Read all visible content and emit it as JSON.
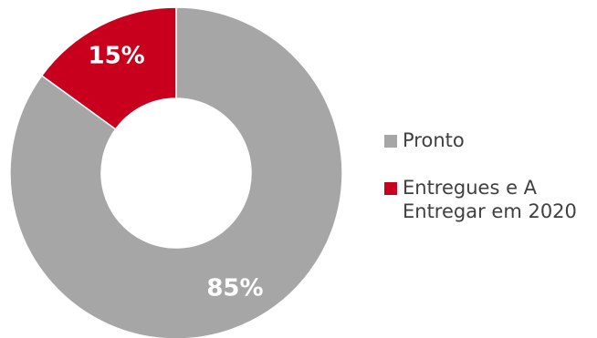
{
  "chart_data": {
    "type": "pie",
    "variant": "donut",
    "categories": [
      "Pronto",
      "Entregues e A Entregar em 2020"
    ],
    "values": [
      85,
      15
    ],
    "labels": [
      "85%",
      "15%"
    ],
    "colors": [
      "#a6a6a6",
      "#c8001e"
    ],
    "legend_position": "right",
    "title": ""
  },
  "legend": {
    "items": [
      {
        "label": "Pronto",
        "color": "#a6a6a6"
      },
      {
        "label": "Entregues e A Entregar em 2020",
        "color": "#c8001e"
      }
    ]
  }
}
